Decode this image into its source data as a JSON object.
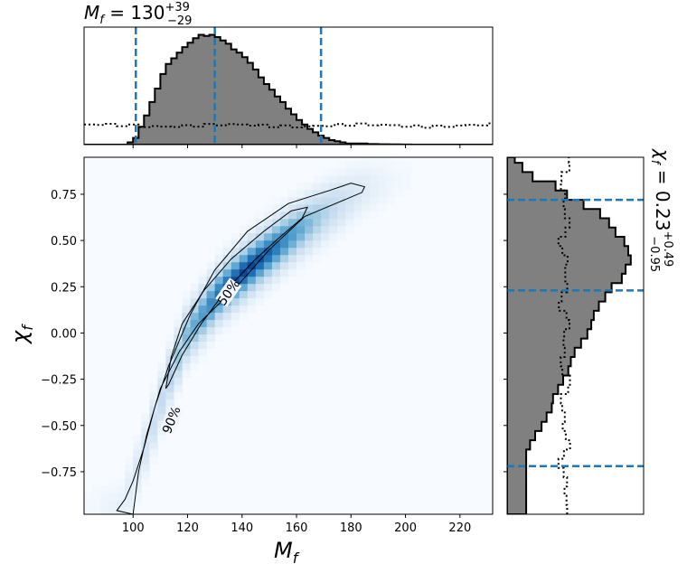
{
  "chart_data": [
    {
      "type": "histogram",
      "panel": "top-marginal",
      "title_main": "M",
      "title_sub": "f",
      "title_value": " = 130",
      "title_sup": "+39",
      "title_inf": "−29",
      "x_range": [
        82,
        232
      ],
      "posterior_edges": [
        82,
        84,
        86,
        88,
        90,
        92,
        94,
        96,
        98,
        100,
        102,
        104,
        106,
        108,
        110,
        112,
        114,
        116,
        118,
        120,
        122,
        124,
        126,
        128,
        130,
        132,
        134,
        136,
        138,
        140,
        142,
        144,
        146,
        148,
        150,
        152,
        154,
        156,
        158,
        160,
        162,
        164,
        166,
        168,
        170,
        172,
        174,
        176,
        178,
        180,
        182,
        184,
        186,
        188,
        190,
        192,
        194,
        196,
        198,
        200,
        202,
        204,
        206,
        208,
        210,
        212,
        214,
        216,
        218,
        220,
        222,
        224,
        226,
        228,
        230,
        232
      ],
      "posterior_density": [
        0,
        0,
        0,
        0,
        0,
        0,
        0,
        0,
        0.02,
        0.06,
        0.16,
        0.26,
        0.38,
        0.5,
        0.63,
        0.72,
        0.77,
        0.82,
        0.87,
        0.91,
        0.95,
        0.98,
        0.97,
        0.98,
        0.96,
        0.93,
        0.9,
        0.85,
        0.82,
        0.78,
        0.73,
        0.67,
        0.6,
        0.54,
        0.49,
        0.43,
        0.38,
        0.32,
        0.27,
        0.22,
        0.18,
        0.14,
        0.11,
        0.08,
        0.06,
        0.04,
        0.03,
        0.02,
        0.01,
        0.01,
        0.01,
        0.01,
        0.005,
        0.005,
        0.003,
        0.003,
        0.002,
        0.002,
        0.001,
        0.001,
        0,
        0,
        0,
        0,
        0,
        0,
        0,
        0,
        0,
        0,
        0,
        0,
        0,
        0,
        0
      ],
      "prior_level": 0.17,
      "quantile_lines": [
        101,
        130,
        169
      ],
      "quantile_color": "#1f77b4"
    },
    {
      "type": "density2d",
      "panel": "main",
      "xlabel_main": "M",
      "xlabel_sub": "f",
      "ylabel_main": "χ",
      "ylabel_sub": "f",
      "x_range": [
        82,
        232
      ],
      "y_range": [
        -0.98,
        0.95
      ],
      "x_ticks": [
        100,
        120,
        140,
        160,
        180,
        200,
        220
      ],
      "y_ticks": [
        0.75,
        0.5,
        0.25,
        0.0,
        -0.25,
        -0.5,
        -0.75
      ],
      "y_tick_labels": [
        "0.75",
        "0.50",
        "0.25",
        "0.00",
        "−0.25",
        "−0.50",
        "−0.75"
      ],
      "ridge": [
        [
          96,
          -0.95
        ],
        [
          105,
          -0.6
        ],
        [
          113,
          -0.25
        ],
        [
          120,
          0.0
        ],
        [
          132,
          0.22
        ],
        [
          143,
          0.36
        ],
        [
          157,
          0.52
        ],
        [
          172,
          0.67
        ],
        [
          185,
          0.78
        ],
        [
          200,
          0.85
        ]
      ],
      "peak": [
        142,
        0.35
      ],
      "contour_90": [
        [
          100,
          -0.98
        ],
        [
          94,
          -0.96
        ],
        [
          97,
          -0.9
        ],
        [
          100,
          -0.8
        ],
        [
          104,
          -0.62
        ],
        [
          108,
          -0.4
        ],
        [
          113,
          -0.18
        ],
        [
          121,
          0.1
        ],
        [
          130,
          0.34
        ],
        [
          142,
          0.55
        ],
        [
          157,
          0.7
        ],
        [
          172,
          0.77
        ],
        [
          180,
          0.81
        ],
        [
          185,
          0.79
        ],
        [
          184,
          0.76
        ],
        [
          176,
          0.71
        ],
        [
          163,
          0.63
        ],
        [
          150,
          0.45
        ],
        [
          138,
          0.25
        ],
        [
          124,
          0.05
        ],
        [
          117,
          -0.1
        ],
        [
          110,
          -0.3
        ],
        [
          105,
          -0.55
        ],
        [
          102,
          -0.75
        ],
        [
          100,
          -0.98
        ]
      ],
      "contour_50": [
        [
          112,
          -0.3
        ],
        [
          114,
          -0.13
        ],
        [
          118,
          0.05
        ],
        [
          126,
          0.23
        ],
        [
          136,
          0.4
        ],
        [
          148,
          0.55
        ],
        [
          158,
          0.66
        ],
        [
          164,
          0.68
        ],
        [
          162,
          0.62
        ],
        [
          154,
          0.52
        ],
        [
          145,
          0.4
        ],
        [
          134,
          0.23
        ],
        [
          125,
          0.05
        ],
        [
          118,
          -0.12
        ],
        [
          113,
          -0.28
        ],
        [
          112,
          -0.3
        ]
      ],
      "contour_labels": [
        {
          "text": "50%",
          "x": 135,
          "y": 0.22,
          "angle": -55
        },
        {
          "text": "90%",
          "x": 114,
          "y": -0.47,
          "angle": -68
        }
      ],
      "colormap": "Blues"
    },
    {
      "type": "histogram",
      "panel": "right-marginal",
      "orientation": "horizontal",
      "title_main": "χ",
      "title_sub": "f",
      "title_value": " = 0.23",
      "title_sup": "+0.49",
      "title_inf": "−0.95",
      "y_range": [
        -0.98,
        0.95
      ],
      "posterior_edges": [
        -0.98,
        -0.93,
        -0.88,
        -0.83,
        -0.78,
        -0.73,
        -0.68,
        -0.63,
        -0.58,
        -0.53,
        -0.48,
        -0.43,
        -0.38,
        -0.33,
        -0.28,
        -0.23,
        -0.18,
        -0.13,
        -0.08,
        -0.03,
        0.02,
        0.07,
        0.12,
        0.17,
        0.22,
        0.27,
        0.32,
        0.37,
        0.42,
        0.47,
        0.52,
        0.57,
        0.62,
        0.67,
        0.72,
        0.77,
        0.82,
        0.87,
        0.92,
        0.95
      ],
      "posterior_density": [
        0.15,
        0.15,
        0.15,
        0.15,
        0.15,
        0.15,
        0.15,
        0.18,
        0.22,
        0.27,
        0.31,
        0.35,
        0.36,
        0.4,
        0.44,
        0.48,
        0.5,
        0.53,
        0.58,
        0.63,
        0.66,
        0.68,
        0.72,
        0.77,
        0.82,
        0.9,
        0.93,
        0.97,
        0.95,
        0.92,
        0.85,
        0.8,
        0.73,
        0.6,
        0.47,
        0.38,
        0.2,
        0.12,
        0.06
      ],
      "prior_level": 0.45,
      "quantile_lines": [
        -0.72,
        0.23,
        0.72
      ],
      "quantile_color": "#1f77b4"
    }
  ]
}
